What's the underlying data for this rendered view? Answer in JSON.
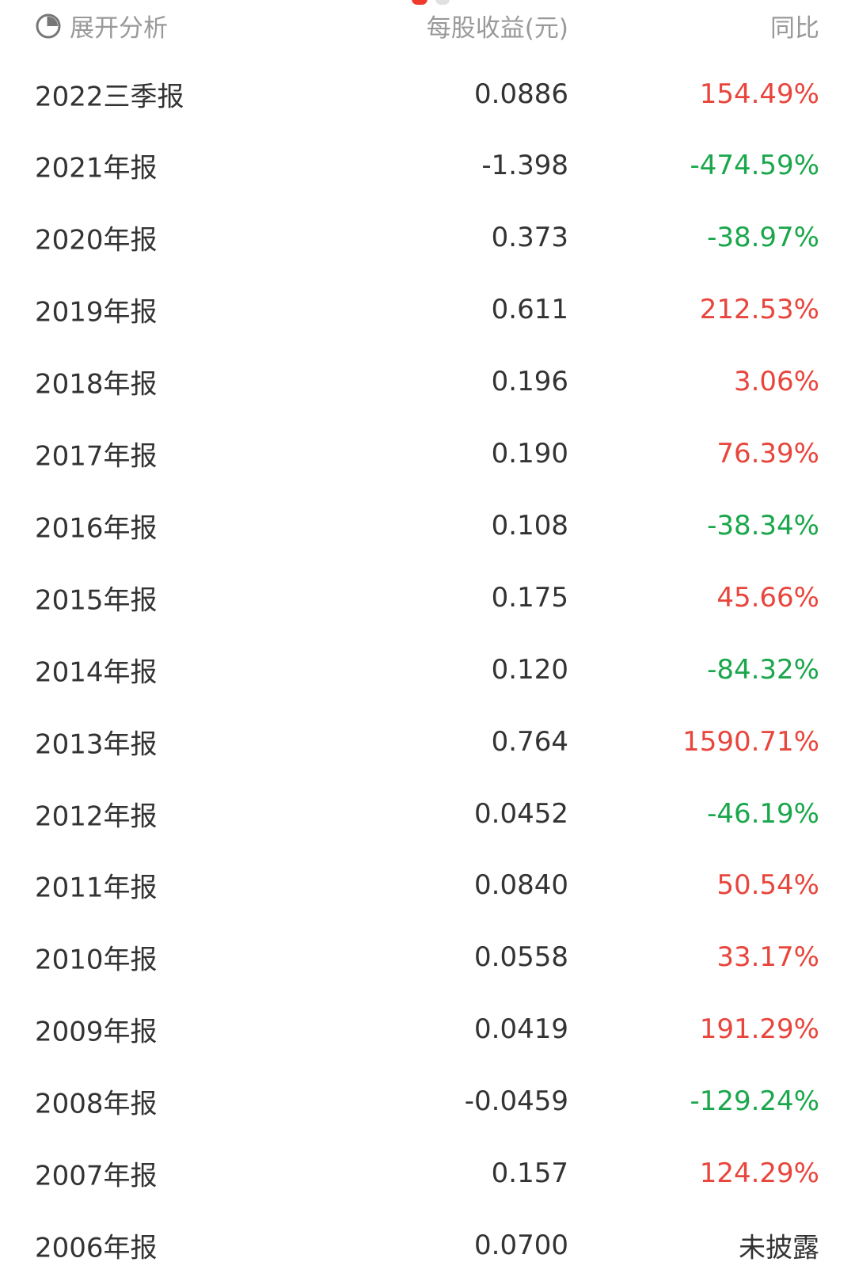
{
  "pager": {
    "count": 2,
    "active": 0
  },
  "colors": {
    "up": "#e8453c",
    "down": "#1aa64b",
    "neutral": "#333333",
    "header": "#999999"
  },
  "header": {
    "expand_label": "展开分析",
    "expand_icon": "pie-chart-icon",
    "eps_label": "每股收益(元)",
    "yoy_label": "同比"
  },
  "rows": [
    {
      "period": "2022三季报",
      "eps": "0.0886",
      "yoy": "154.49%",
      "trend": "up"
    },
    {
      "period": "2021年报",
      "eps": "-1.398",
      "yoy": "-474.59%",
      "trend": "down"
    },
    {
      "period": "2020年报",
      "eps": "0.373",
      "yoy": "-38.97%",
      "trend": "down"
    },
    {
      "period": "2019年报",
      "eps": "0.611",
      "yoy": "212.53%",
      "trend": "up"
    },
    {
      "period": "2018年报",
      "eps": "0.196",
      "yoy": "3.06%",
      "trend": "up"
    },
    {
      "period": "2017年报",
      "eps": "0.190",
      "yoy": "76.39%",
      "trend": "up"
    },
    {
      "period": "2016年报",
      "eps": "0.108",
      "yoy": "-38.34%",
      "trend": "down"
    },
    {
      "period": "2015年报",
      "eps": "0.175",
      "yoy": "45.66%",
      "trend": "up"
    },
    {
      "period": "2014年报",
      "eps": "0.120",
      "yoy": "-84.32%",
      "trend": "down"
    },
    {
      "period": "2013年报",
      "eps": "0.764",
      "yoy": "1590.71%",
      "trend": "up"
    },
    {
      "period": "2012年报",
      "eps": "0.0452",
      "yoy": "-46.19%",
      "trend": "down"
    },
    {
      "period": "2011年报",
      "eps": "0.0840",
      "yoy": "50.54%",
      "trend": "up"
    },
    {
      "period": "2010年报",
      "eps": "0.0558",
      "yoy": "33.17%",
      "trend": "up"
    },
    {
      "period": "2009年报",
      "eps": "0.0419",
      "yoy": "191.29%",
      "trend": "up"
    },
    {
      "period": "2008年报",
      "eps": "-0.0459",
      "yoy": "-129.24%",
      "trend": "down"
    },
    {
      "period": "2007年报",
      "eps": "0.157",
      "yoy": "124.29%",
      "trend": "up"
    },
    {
      "period": "2006年报",
      "eps": "0.0700",
      "yoy": "未披露",
      "trend": "neutral"
    }
  ]
}
